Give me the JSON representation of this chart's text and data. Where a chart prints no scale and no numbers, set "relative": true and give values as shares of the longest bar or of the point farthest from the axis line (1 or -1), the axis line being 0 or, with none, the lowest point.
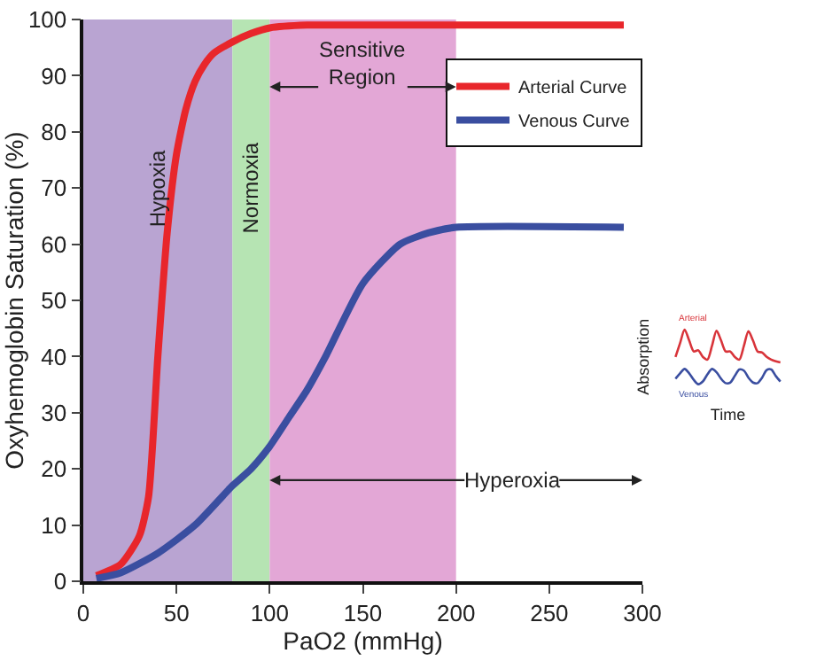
{
  "chart_data": [
    {
      "type": "line",
      "xlabel": "PaO2 (mmHg)",
      "ylabel": "Oxyhemoglobin Saturation (%)",
      "xlim": [
        0,
        300
      ],
      "xticks": [
        0,
        50,
        100,
        150,
        200,
        250,
        300
      ],
      "ylim": [
        0,
        100
      ],
      "yticks": [
        0,
        10,
        20,
        30,
        40,
        50,
        60,
        70,
        80,
        90,
        100
      ],
      "grid": false,
      "legend": "top right",
      "marker": "none",
      "line_style": "solid",
      "series": [
        {
          "name": "Arterial Curve",
          "color": "#e8262b",
          "x": [
            7,
            20,
            30,
            35,
            40,
            45,
            50,
            55,
            60,
            65,
            70,
            80,
            90,
            100,
            120,
            150,
            200,
            290
          ],
          "values": [
            1,
            3,
            8,
            15,
            40,
            62,
            76,
            84,
            89,
            92,
            94,
            96,
            97.5,
            98.5,
            99,
            99,
            99,
            99
          ]
        },
        {
          "name": "Venous Curve",
          "color": "#3a4ea0",
          "x": [
            7,
            20,
            40,
            60,
            80,
            90,
            100,
            110,
            120,
            130,
            150,
            170,
            185,
            200,
            290
          ],
          "values": [
            0.5,
            1.5,
            5,
            10,
            17,
            20,
            24,
            29,
            34,
            40,
            53,
            60,
            62,
            63,
            63
          ]
        }
      ],
      "bands": [
        {
          "axis": "x",
          "from": 0,
          "to": 80,
          "label": "Hypoxia",
          "color": "#b9a4d2"
        },
        {
          "axis": "x",
          "from": 80,
          "to": 100,
          "label": "Normoxia",
          "color": "#b6e4b3"
        },
        {
          "axis": "x",
          "from": 100,
          "to": 200,
          "label": "Sensitive Region",
          "color": "#e3a7d6"
        }
      ],
      "annotations": [
        {
          "text": "Hyperoxia",
          "x": 100,
          "y": 18
        }
      ]
    },
    {
      "type": "line",
      "relative": true,
      "xlabel": "Time",
      "ylabel": "Absorption",
      "legend": false,
      "marker": "none",
      "line_style": "solid",
      "categories": [
        null,
        null,
        null,
        null,
        null,
        null,
        null,
        null,
        null,
        null,
        null,
        null,
        null,
        null,
        null,
        null,
        null,
        null,
        null,
        null,
        null,
        null,
        null,
        null
      ],
      "series": [
        {
          "name": "Arterial",
          "color": "#d8343a",
          "values": [
            0.5,
            0.75,
            1.0,
            0.8,
            0.6,
            0.62,
            0.5,
            0.45,
            0.7,
            0.98,
            0.8,
            0.6,
            0.6,
            0.5,
            0.45,
            0.7,
            0.97,
            0.8,
            0.6,
            0.58,
            0.5,
            0.45,
            0.42,
            0.4
          ]
        },
        {
          "name": "Venous",
          "color": "#3a4ea0",
          "values": [
            0.1,
            0.2,
            0.28,
            0.2,
            0.08,
            0,
            0.05,
            0.18,
            0.28,
            0.22,
            0.1,
            0.02,
            0.03,
            0.15,
            0.27,
            0.25,
            0.12,
            0.03,
            0.02,
            0.12,
            0.26,
            0.27,
            0.15,
            0.05
          ]
        }
      ]
    }
  ]
}
